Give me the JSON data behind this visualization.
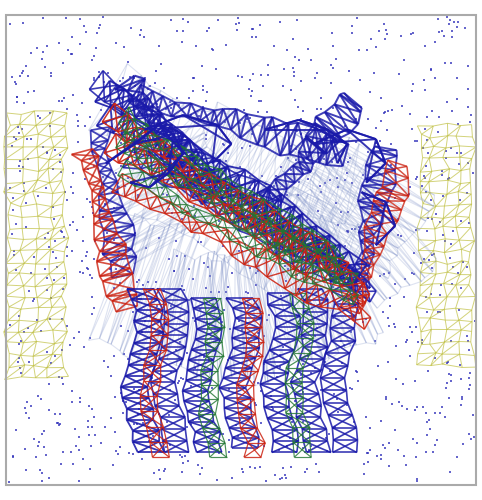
{
  "background_color": "#ffffff",
  "border_color": "#aaaaaa",
  "border_linewidth": 1.5,
  "water_dot_color": "#3333bb",
  "water_dot_size": 3.5,
  "water_dot_alpha": 0.75,
  "water_dot_count": 1100,
  "water_dot_seed": 42,
  "lipid_color": "#bbbb33",
  "lipid_alpha": 0.65,
  "lipid_linewidth": 0.7,
  "protein_outer_color": "#1a1aaa",
  "protein_hidden_color": "#cc2211",
  "protein_mid_color": "#227733",
  "protein_shadow_color": "#8899cc",
  "protein_shadow_alpha": 0.28,
  "protein_linewidth": 1.0,
  "figsize": [
    4.82,
    5.0
  ],
  "dpi": 100
}
